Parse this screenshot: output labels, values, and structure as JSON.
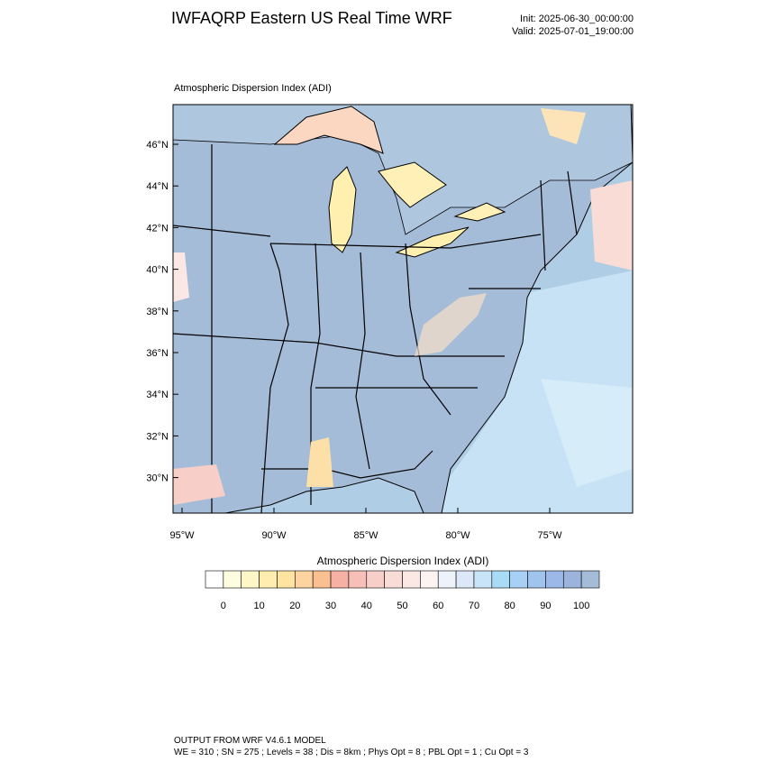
{
  "header": {
    "title": "IWFAQRP Eastern US Real Time WRF",
    "init": "Init: 2025-06-30_00:00:00",
    "valid": "Valid: 2025-07-01_19:00:00"
  },
  "map": {
    "subtitle": "Atmospheric Dispersion Index   (ADI)",
    "lat_labels": [
      "46°N",
      "44°N",
      "42°N",
      "40°N",
      "38°N",
      "36°N",
      "34°N",
      "32°N",
      "30°N"
    ],
    "lon_labels": [
      "95°W",
      "90°W",
      "85°W",
      "80°W",
      "75°W"
    ]
  },
  "colorbar": {
    "title": "Atmospheric Dispersion Index  (ADI)",
    "labels": [
      0,
      10,
      20,
      30,
      40,
      50,
      60,
      70,
      80,
      90,
      100
    ],
    "colors": [
      "#ffffff",
      "#fffde0",
      "#fff6c8",
      "#ffedb0",
      "#ffe3a0",
      "#fdd4a0",
      "#fbc090",
      "#f6b0a4",
      "#f6c0b8",
      "#f7cfc8",
      "#f9dcd6",
      "#fbe8e4",
      "#fdf4f2",
      "#eef3fb",
      "#dce8f7",
      "#c8e4f8",
      "#a8dcf6",
      "#a8d0f4",
      "#a0c4ee",
      "#9cb8e8",
      "#9cb4dc",
      "#a4bcd8"
    ]
  },
  "footer": {
    "line1": "OUTPUT FROM WRF V4.6.1 MODEL",
    "line2": "WE = 310 ; SN = 275 ; Levels = 38 ; Dis = 8km ; Phys Opt = 8 ; PBL Opt = 1 ; Cu Opt = 3"
  }
}
